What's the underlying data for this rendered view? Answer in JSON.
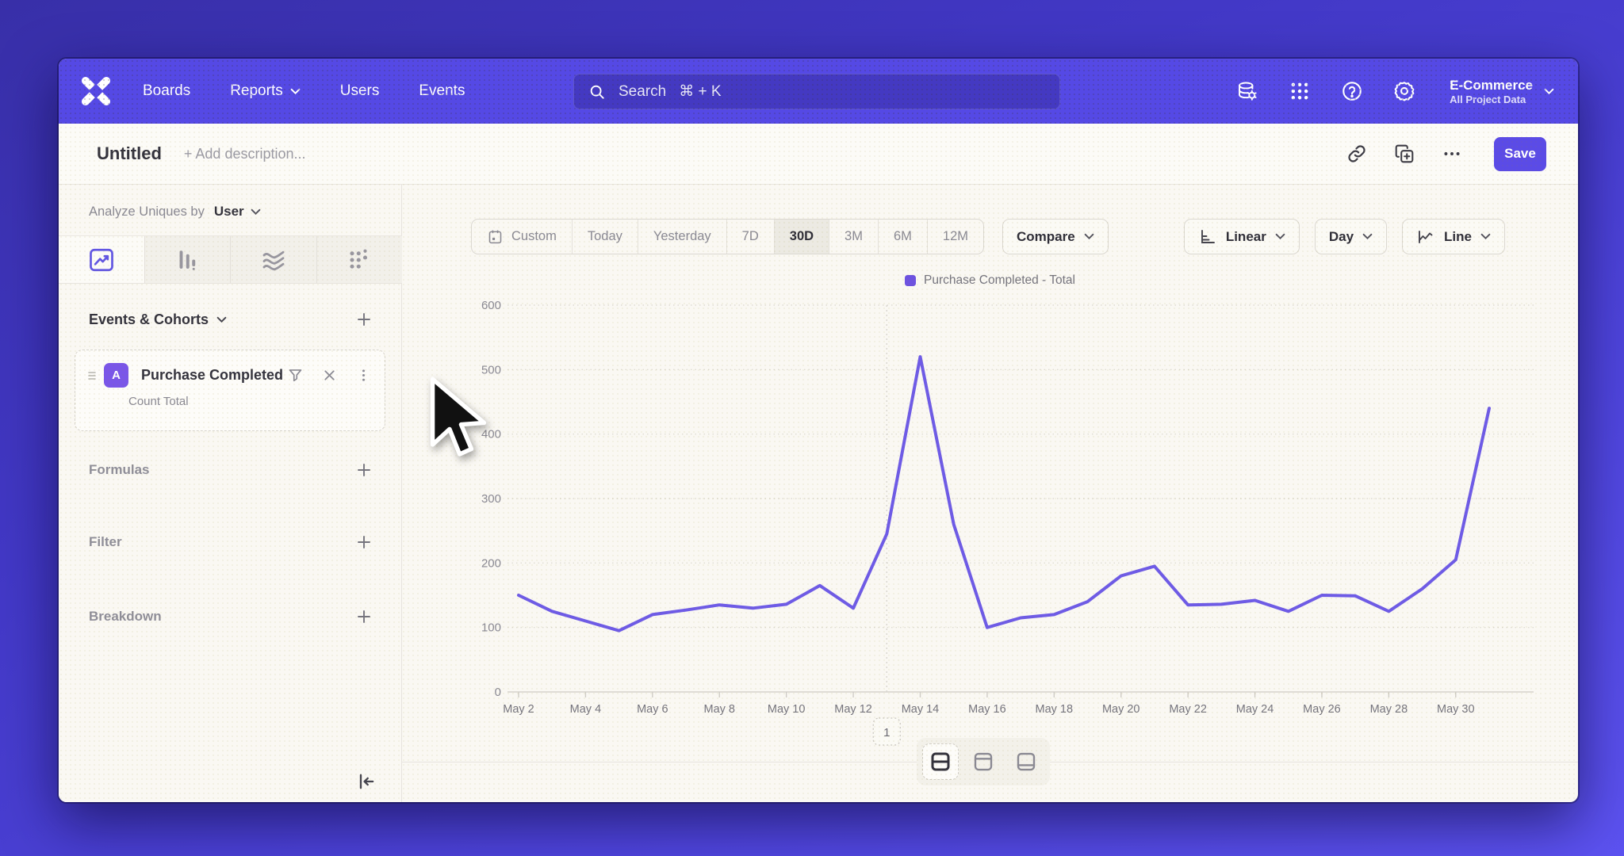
{
  "navbar": {
    "items": [
      {
        "label": "Boards",
        "chevron": false
      },
      {
        "label": "Reports",
        "chevron": true
      },
      {
        "label": "Users",
        "chevron": false
      },
      {
        "label": "Events",
        "chevron": false
      }
    ],
    "search": {
      "placeholder": "Search",
      "shortcut": "⌘ + K"
    },
    "project": {
      "name": "E-Commerce",
      "scope": "All Project Data"
    }
  },
  "titlebar": {
    "title": "Untitled",
    "description_placeholder": "+ Add description...",
    "save_label": "Save"
  },
  "sidebar": {
    "analyze_label": "Analyze Uniques by",
    "analyze_value": "User",
    "events_header": "Events & Cohorts",
    "formulas_label": "Formulas",
    "filter_label": "Filter",
    "breakdown_label": "Breakdown",
    "event_card": {
      "badge": "A",
      "title": "Purchase Completed",
      "subtitle": "Count Total"
    }
  },
  "controls": {
    "ranges": [
      {
        "label": "Custom",
        "icon": "calendar-icon"
      },
      {
        "label": "Today"
      },
      {
        "label": "Yesterday"
      },
      {
        "label": "7D"
      },
      {
        "label": "30D"
      },
      {
        "label": "3M"
      },
      {
        "label": "6M"
      },
      {
        "label": "12M"
      }
    ],
    "selected_range": "30D",
    "compare_label": "Compare",
    "scale_label": "Linear",
    "interval_label": "Day",
    "chart_type_label": "Line"
  },
  "colors": {
    "accent": "#5b4be6",
    "navbar": "#5549e5",
    "line": "#6e5be6",
    "legend_swatch": "#6d52e0",
    "badge": "#7a56e8"
  },
  "chart_data": {
    "type": "line",
    "title": "",
    "legend": [
      "Purchase Completed - Total"
    ],
    "x": [
      "May 2",
      "May 3",
      "May 4",
      "May 5",
      "May 6",
      "May 7",
      "May 8",
      "May 9",
      "May 10",
      "May 11",
      "May 12",
      "May 13",
      "May 14",
      "May 15",
      "May 16",
      "May 17",
      "May 18",
      "May 19",
      "May 20",
      "May 21",
      "May 22",
      "May 23",
      "May 24",
      "May 25",
      "May 26",
      "May 27",
      "May 28",
      "May 29",
      "May 30",
      "May 31"
    ],
    "x_tick_every": 2,
    "series": [
      {
        "name": "Purchase Completed - Total",
        "color": "#6e5be6",
        "values": [
          150,
          125,
          110,
          95,
          120,
          127,
          135,
          130,
          136,
          165,
          130,
          245,
          520,
          260,
          100,
          115,
          120,
          140,
          180,
          195,
          135,
          136,
          142,
          125,
          150,
          149,
          125,
          160,
          205,
          440
        ]
      }
    ],
    "ylim": [
      0,
      600
    ],
    "y_ticks": [
      0,
      100,
      200,
      300,
      400,
      500,
      600
    ],
    "grid": "horizontal-dotted",
    "annotation": {
      "label": "1",
      "x": "May 13"
    }
  }
}
